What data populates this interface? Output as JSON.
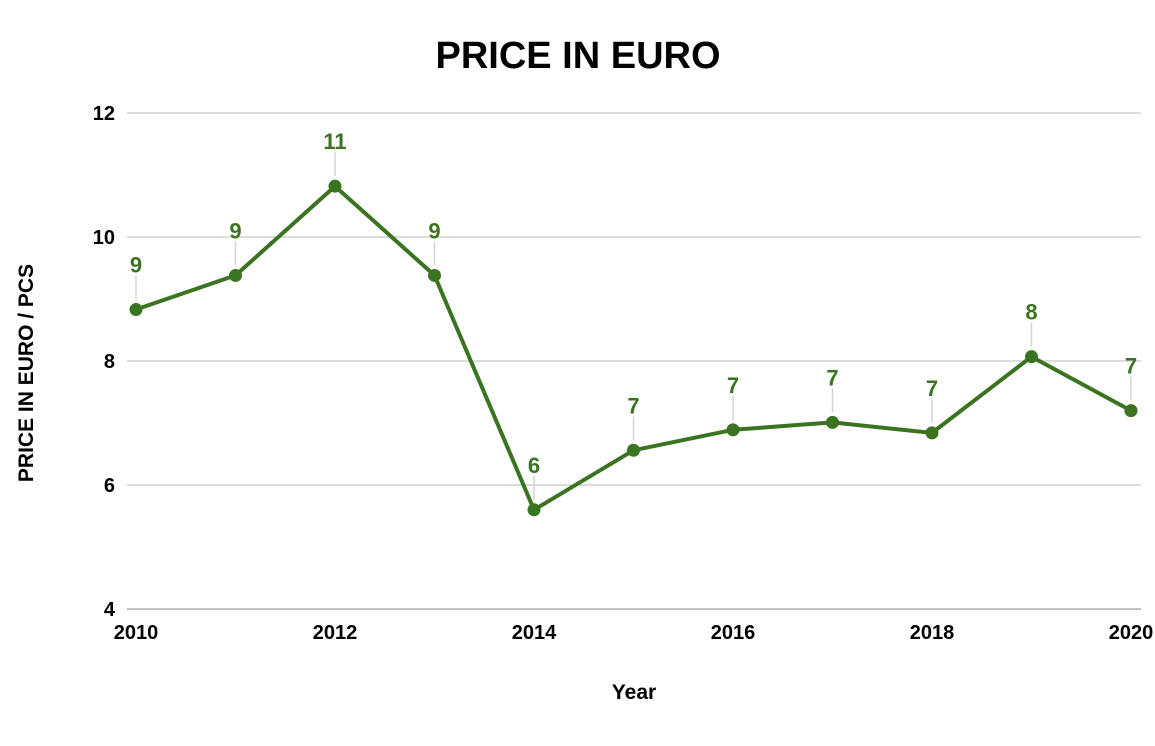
{
  "chart_data": {
    "type": "line",
    "title": "PRICE IN EURO",
    "xlabel": "Year",
    "ylabel": "PRICE IN EURO / PCS",
    "xlim": [
      2010,
      2020
    ],
    "ylim": [
      4,
      12
    ],
    "x_ticks": [
      "2010",
      "2012",
      "2014",
      "2016",
      "2018",
      "2020"
    ],
    "y_ticks": [
      "4",
      "6",
      "8",
      "10",
      "12"
    ],
    "grid": "horizontal",
    "legend": "none",
    "color": "#3a7421",
    "series": [
      {
        "x": [
          2010,
          2011,
          2012,
          2013,
          2014,
          2015,
          2016,
          2017,
          2018,
          2019,
          2020
        ],
        "values": [
          8.83,
          9.38,
          10.82,
          9.38,
          5.6,
          6.56,
          6.89,
          7.01,
          6.84,
          8.07,
          7.2
        ],
        "labels": [
          "9",
          "9",
          "11",
          "9",
          "6",
          "7",
          "7",
          "7",
          "7",
          "8",
          "7"
        ]
      }
    ]
  }
}
